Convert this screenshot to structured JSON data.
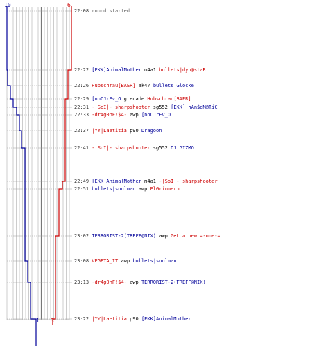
{
  "chart_data": {
    "type": "line",
    "title": "",
    "xlabel": "",
    "ylabel": "",
    "start_score_blue": "10",
    "start_score_red": "6",
    "end_score_blue": "1",
    "end_score_red": "3",
    "series": [
      {
        "name": "",
        "color": "#000099"
      },
      {
        "name": "",
        "color": "#cc0000"
      }
    ]
  },
  "colors": {
    "blue": "#000099",
    "red": "#cc0000",
    "grid": "#bdbdbd"
  },
  "events": [
    {
      "time": "22:08",
      "parts": [
        {
          "t": "round started",
          "c": "g"
        }
      ]
    },
    {
      "time": "22:22",
      "parts": [
        {
          "t": "[EKK]AnimalMother",
          "c": "b"
        },
        {
          "t": " m4a1 ",
          "c": "k"
        },
        {
          "t": "bullets|dyn@staR",
          "c": "r"
        }
      ]
    },
    {
      "time": "22:26",
      "parts": [
        {
          "t": "Hubschrau[BAER]",
          "c": "r"
        },
        {
          "t": " ak47 ",
          "c": "k"
        },
        {
          "t": "bullets|Glocke",
          "c": "b"
        }
      ]
    },
    {
      "time": "22:29",
      "parts": [
        {
          "t": "[noCJrEv_O",
          "c": "b"
        },
        {
          "t": " grenade ",
          "c": "k"
        },
        {
          "t": "Hubschrau[BAER]",
          "c": "r"
        }
      ]
    },
    {
      "time": "22:31",
      "parts": [
        {
          "t": "-|SoI|- sharpshooter",
          "c": "r"
        },
        {
          "t": " sg552 ",
          "c": "k"
        },
        {
          "t": "[EKK] hAn$oM@TiC",
          "c": "b"
        }
      ]
    },
    {
      "time": "22:33",
      "parts": [
        {
          "t": "-dr4g0nF!$4-",
          "c": "r"
        },
        {
          "t": " awp ",
          "c": "k"
        },
        {
          "t": "[noCJrEv_O",
          "c": "b"
        }
      ]
    },
    {
      "time": "22:37",
      "parts": [
        {
          "t": "|YY|Laetitia",
          "c": "r"
        },
        {
          "t": " p90 ",
          "c": "k"
        },
        {
          "t": "Dragoon",
          "c": "b"
        }
      ]
    },
    {
      "time": "22:41",
      "parts": [
        {
          "t": "-|SoI|- sharpshooter",
          "c": "r"
        },
        {
          "t": " sg552 ",
          "c": "k"
        },
        {
          "t": "DJ GIZMO",
          "c": "b"
        }
      ]
    },
    {
      "time": "22:49",
      "parts": [
        {
          "t": "[EKK]AnimalMother",
          "c": "b"
        },
        {
          "t": " m4a1 ",
          "c": "k"
        },
        {
          "t": "-|SoI|- sharpshooter",
          "c": "r"
        }
      ]
    },
    {
      "time": "22:51",
      "parts": [
        {
          "t": "bullets|soulman",
          "c": "b"
        },
        {
          "t": " awp ",
          "c": "k"
        },
        {
          "t": "ElGrimmero",
          "c": "r"
        }
      ]
    },
    {
      "time": "23:02",
      "parts": [
        {
          "t": "TERRORIST-2(TREFF@NIX)",
          "c": "b"
        },
        {
          "t": " awp ",
          "c": "k"
        },
        {
          "t": "Get a new =-one-=",
          "c": "r"
        }
      ]
    },
    {
      "time": "23:08",
      "parts": [
        {
          "t": "VEGETA_IT",
          "c": "r"
        },
        {
          "t": " awp ",
          "c": "k"
        },
        {
          "t": "bullets|soulman",
          "c": "b"
        }
      ]
    },
    {
      "time": "23:13",
      "parts": [
        {
          "t": "-dr4g0nF!$4-",
          "c": "r"
        },
        {
          "t": " awp ",
          "c": "k"
        },
        {
          "t": "TERRORIST-2(TREFF@NIX)",
          "c": "b"
        }
      ]
    },
    {
      "time": "23:22",
      "parts": [
        {
          "t": "|YY|Laetitia",
          "c": "r"
        },
        {
          "t": " p90 ",
          "c": "k"
        },
        {
          "t": "[EKK]AnimalMother",
          "c": "b"
        }
      ]
    }
  ]
}
